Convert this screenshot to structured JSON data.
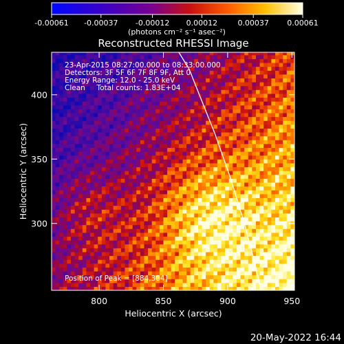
{
  "colorbar": {
    "tick_labels": [
      "-0.00061",
      "-0.00037",
      "-0.00012",
      "0.00012",
      "0.00037",
      "0.00061"
    ],
    "tick_values": [
      -0.00061,
      -0.00037,
      -0.00012,
      0.00012,
      0.00037,
      0.00061
    ],
    "range": [
      -0.00061,
      0.00061
    ],
    "unit_label": "(photons cm⁻² s⁻¹ asec⁻²)"
  },
  "chart_data": {
    "type": "heatmap",
    "title": "Reconstructed RHESSI Image",
    "xlabel": "Heliocentric X (arcsec)",
    "ylabel": "Heliocentric Y (arcsec)",
    "xlim": [
      763,
      952
    ],
    "ylim": [
      248,
      433
    ],
    "x_ticks": [
      800,
      850,
      900,
      950
    ],
    "y_ticks": [
      300,
      350,
      400
    ],
    "x_tick_labels": [
      "800",
      "850",
      "900",
      "950"
    ],
    "y_tick_labels": [
      "300",
      "350",
      "400"
    ],
    "colormap": "blue-purple-red-orange-yellow-white",
    "annotations": [
      "23-Apr-2015 08:27:00.000 to 08:33:00.000",
      "Detectors: 3F 5F 6F 7F 8F 9F, Att 0",
      "Energy Range: 12.0 - 25.0 keV",
      "Clean     Total counts: 1.83E+04"
    ],
    "peak_label": "Position of Peak = [884,304]",
    "peak": [
      884,
      304
    ],
    "limb_curve": [
      [
        862,
        433
      ],
      [
        870,
        420
      ],
      [
        878,
        400
      ],
      [
        890,
        370
      ],
      [
        902,
        336
      ],
      [
        913,
        300
      ],
      [
        921,
        270
      ],
      [
        926,
        248
      ]
    ]
  },
  "timestamp": "20-May-2022 16:44",
  "colors": {
    "background": "#000000",
    "axes": "#ffffff",
    "limb": "#ffffff"
  }
}
